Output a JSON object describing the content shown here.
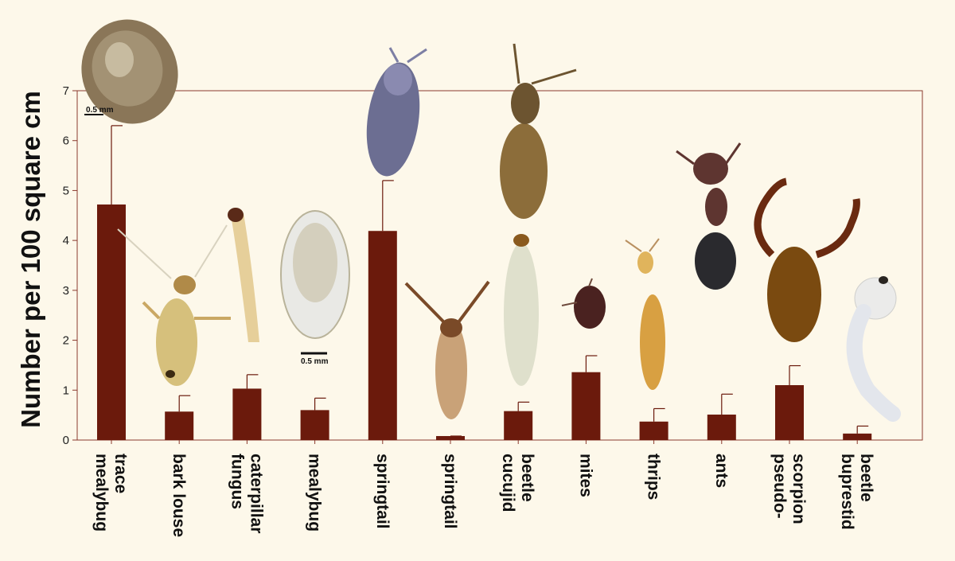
{
  "chart_data": {
    "type": "bar",
    "ylabel": "Number per 100 square cm",
    "ylim": [
      0,
      7
    ],
    "yticks": [
      "0",
      "1",
      "2",
      "3",
      "4",
      "5",
      "6",
      "7"
    ],
    "bar_color": "#6b1a0c",
    "background": "#fdf8ea",
    "grid": false,
    "categories": [
      {
        "lines": [
          "mealybug",
          "trace"
        ]
      },
      {
        "lines": [
          "bark louse"
        ]
      },
      {
        "lines": [
          "fungus",
          "caterpillar"
        ]
      },
      {
        "lines": [
          "mealybug"
        ]
      },
      {
        "lines": [
          "springtail"
        ]
      },
      {
        "lines": [
          "springtail"
        ]
      },
      {
        "lines": [
          "cucujid",
          "beetle"
        ]
      },
      {
        "lines": [
          "mites"
        ]
      },
      {
        "lines": [
          "thrips"
        ]
      },
      {
        "lines": [
          "ants"
        ]
      },
      {
        "lines": [
          "pseudo-",
          "scorpion"
        ]
      },
      {
        "lines": [
          "buprestid",
          "beetle"
        ]
      }
    ],
    "values": [
      4.72,
      0.57,
      1.03,
      0.6,
      4.19,
      0.08,
      0.58,
      1.36,
      0.37,
      0.51,
      1.1,
      0.13
    ],
    "error_upper": [
      6.3,
      0.89,
      1.31,
      0.84,
      5.2,
      0.08,
      0.76,
      1.69,
      0.63,
      0.92,
      1.49,
      0.28
    ],
    "annotations": {
      "scale_bar_1": "0.5 mm",
      "scale_bar_2": "0.5 mm"
    }
  }
}
